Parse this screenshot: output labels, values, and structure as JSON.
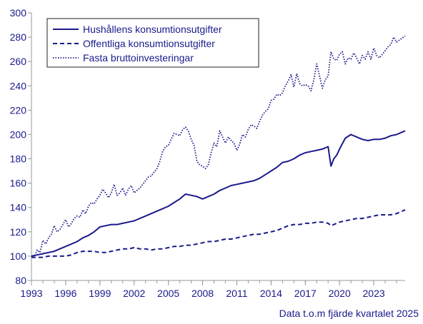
{
  "chart_data": {
    "type": "line",
    "ylim": [
      80,
      300
    ],
    "yticks": [
      80,
      100,
      120,
      140,
      160,
      180,
      200,
      220,
      240,
      260,
      280,
      300
    ],
    "xlim": [
      1993.0,
      2025.75
    ],
    "xticks": [
      1993,
      1996,
      1999,
      2002,
      2005,
      2008,
      2011,
      2014,
      2017,
      2020,
      2023
    ],
    "grid": false,
    "legend_position": "top-left",
    "note": "Data t.o.m fjärde kvartalet 2025",
    "colors": {
      "line": "#1a1a8c",
      "axis": "#999999",
      "text": "#1a1a8c"
    },
    "series": [
      {
        "name": "Hushållens konsumtionsutgifter",
        "style": "solid",
        "points": [
          [
            1993.0,
            100
          ],
          [
            1993.5,
            101
          ],
          [
            1994.0,
            102
          ],
          [
            1994.5,
            103
          ],
          [
            1995.0,
            104
          ],
          [
            1995.5,
            106
          ],
          [
            1996.0,
            108
          ],
          [
            1996.5,
            110
          ],
          [
            1997.0,
            112
          ],
          [
            1997.5,
            115
          ],
          [
            1998.0,
            117
          ],
          [
            1998.5,
            120
          ],
          [
            1999.0,
            124
          ],
          [
            1999.5,
            125
          ],
          [
            2000.0,
            126
          ],
          [
            2000.5,
            126
          ],
          [
            2001.0,
            127
          ],
          [
            2001.5,
            128
          ],
          [
            2002.0,
            129
          ],
          [
            2002.5,
            131
          ],
          [
            2003.0,
            133
          ],
          [
            2003.5,
            135
          ],
          [
            2004.0,
            137
          ],
          [
            2004.5,
            139
          ],
          [
            2005.0,
            141
          ],
          [
            2005.5,
            144
          ],
          [
            2006.0,
            147
          ],
          [
            2006.5,
            151
          ],
          [
            2007.0,
            150
          ],
          [
            2007.5,
            149
          ],
          [
            2008.0,
            147
          ],
          [
            2008.5,
            149
          ],
          [
            2009.0,
            151
          ],
          [
            2009.5,
            154
          ],
          [
            2010.0,
            156
          ],
          [
            2010.5,
            158
          ],
          [
            2011.0,
            159
          ],
          [
            2011.5,
            160
          ],
          [
            2012.0,
            161
          ],
          [
            2012.5,
            162
          ],
          [
            2013.0,
            164
          ],
          [
            2013.5,
            167
          ],
          [
            2014.0,
            170
          ],
          [
            2014.5,
            173
          ],
          [
            2015.0,
            177
          ],
          [
            2015.5,
            178
          ],
          [
            2016.0,
            180
          ],
          [
            2016.5,
            183
          ],
          [
            2017.0,
            185
          ],
          [
            2017.5,
            186
          ],
          [
            2018.0,
            187
          ],
          [
            2018.5,
            188
          ],
          [
            2019.0,
            190
          ],
          [
            2019.25,
            174
          ],
          [
            2019.5,
            180
          ],
          [
            2019.75,
            183
          ],
          [
            2020.0,
            188
          ],
          [
            2020.5,
            197
          ],
          [
            2021.0,
            200
          ],
          [
            2021.5,
            198
          ],
          [
            2022.0,
            196
          ],
          [
            2022.5,
            195
          ],
          [
            2023.0,
            196
          ],
          [
            2023.5,
            196
          ],
          [
            2024.0,
            197
          ],
          [
            2024.5,
            199
          ],
          [
            2025.0,
            200
          ],
          [
            2025.75,
            203
          ]
        ]
      },
      {
        "name": "Offentliga konsumtionsutgifter",
        "style": "dashed",
        "points": [
          [
            1993.0,
            99
          ],
          [
            1993.5,
            99
          ],
          [
            1994.0,
            99
          ],
          [
            1994.5,
            100
          ],
          [
            1995.0,
            100
          ],
          [
            1995.5,
            100
          ],
          [
            1996.0,
            100
          ],
          [
            1996.5,
            101
          ],
          [
            1997.0,
            103
          ],
          [
            1997.5,
            104
          ],
          [
            1998.0,
            104
          ],
          [
            1998.5,
            104
          ],
          [
            1999.0,
            103
          ],
          [
            1999.5,
            103
          ],
          [
            2000.0,
            104
          ],
          [
            2000.5,
            105
          ],
          [
            2001.0,
            106
          ],
          [
            2001.5,
            106
          ],
          [
            2002.0,
            107
          ],
          [
            2002.5,
            106
          ],
          [
            2003.0,
            106
          ],
          [
            2003.5,
            105
          ],
          [
            2004.0,
            106
          ],
          [
            2004.5,
            106
          ],
          [
            2005.0,
            107
          ],
          [
            2005.5,
            108
          ],
          [
            2006.0,
            108
          ],
          [
            2006.5,
            109
          ],
          [
            2007.0,
            109
          ],
          [
            2007.5,
            110
          ],
          [
            2008.0,
            111
          ],
          [
            2008.5,
            112
          ],
          [
            2009.0,
            112
          ],
          [
            2009.5,
            113
          ],
          [
            2010.0,
            114
          ],
          [
            2010.5,
            114
          ],
          [
            2011.0,
            115
          ],
          [
            2011.5,
            116
          ],
          [
            2012.0,
            117
          ],
          [
            2012.5,
            118
          ],
          [
            2013.0,
            118
          ],
          [
            2013.5,
            119
          ],
          [
            2014.0,
            120
          ],
          [
            2014.5,
            121
          ],
          [
            2015.0,
            123
          ],
          [
            2015.5,
            125
          ],
          [
            2016.0,
            126
          ],
          [
            2016.5,
            126
          ],
          [
            2017.0,
            127
          ],
          [
            2017.5,
            127
          ],
          [
            2018.0,
            128
          ],
          [
            2018.5,
            128
          ],
          [
            2019.0,
            127
          ],
          [
            2019.25,
            125
          ],
          [
            2019.5,
            126
          ],
          [
            2020.0,
            128
          ],
          [
            2020.5,
            129
          ],
          [
            2021.0,
            130
          ],
          [
            2021.5,
            131
          ],
          [
            2022.0,
            131
          ],
          [
            2022.5,
            132
          ],
          [
            2023.0,
            133
          ],
          [
            2023.5,
            134
          ],
          [
            2024.0,
            134
          ],
          [
            2024.5,
            134
          ],
          [
            2025.0,
            135
          ],
          [
            2025.75,
            138
          ]
        ]
      },
      {
        "name": "Fasta bruttoinvesteringar",
        "style": "dotted",
        "points": [
          [
            1993.0,
            100
          ],
          [
            1993.25,
            99
          ],
          [
            1993.5,
            105
          ],
          [
            1993.75,
            103
          ],
          [
            1994.0,
            113
          ],
          [
            1994.25,
            110
          ],
          [
            1994.5,
            115
          ],
          [
            1994.75,
            118
          ],
          [
            1995.0,
            125
          ],
          [
            1995.25,
            120
          ],
          [
            1995.5,
            122
          ],
          [
            1995.75,
            126
          ],
          [
            1996.0,
            130
          ],
          [
            1996.25,
            124
          ],
          [
            1996.5,
            127
          ],
          [
            1996.75,
            131
          ],
          [
            1997.0,
            133
          ],
          [
            1997.25,
            132
          ],
          [
            1997.5,
            138
          ],
          [
            1997.75,
            135
          ],
          [
            1998.0,
            141
          ],
          [
            1998.25,
            144
          ],
          [
            1998.5,
            143
          ],
          [
            1998.75,
            147
          ],
          [
            1999.0,
            150
          ],
          [
            1999.25,
            155
          ],
          [
            1999.5,
            152
          ],
          [
            1999.75,
            148
          ],
          [
            2000.0,
            152
          ],
          [
            2000.25,
            159
          ],
          [
            2000.5,
            150
          ],
          [
            2000.75,
            152
          ],
          [
            2001.0,
            156
          ],
          [
            2001.25,
            150
          ],
          [
            2001.5,
            155
          ],
          [
            2001.75,
            158
          ],
          [
            2002.0,
            152
          ],
          [
            2002.25,
            154
          ],
          [
            2002.5,
            156
          ],
          [
            2002.75,
            159
          ],
          [
            2003.0,
            162
          ],
          [
            2003.25,
            165
          ],
          [
            2003.5,
            166
          ],
          [
            2003.75,
            169
          ],
          [
            2004.0,
            172
          ],
          [
            2004.25,
            178
          ],
          [
            2004.5,
            186
          ],
          [
            2004.75,
            190
          ],
          [
            2005.0,
            191
          ],
          [
            2005.25,
            196
          ],
          [
            2005.5,
            201
          ],
          [
            2005.75,
            200
          ],
          [
            2006.0,
            199
          ],
          [
            2006.25,
            204
          ],
          [
            2006.5,
            206
          ],
          [
            2006.75,
            203
          ],
          [
            2007.0,
            196
          ],
          [
            2007.25,
            191
          ],
          [
            2007.5,
            178
          ],
          [
            2007.75,
            175
          ],
          [
            2008.0,
            174
          ],
          [
            2008.25,
            172
          ],
          [
            2008.5,
            175
          ],
          [
            2008.75,
            185
          ],
          [
            2009.0,
            193
          ],
          [
            2009.25,
            190
          ],
          [
            2009.5,
            203
          ],
          [
            2009.75,
            198
          ],
          [
            2010.0,
            193
          ],
          [
            2010.25,
            198
          ],
          [
            2010.5,
            195
          ],
          [
            2010.75,
            193
          ],
          [
            2011.0,
            187
          ],
          [
            2011.25,
            192
          ],
          [
            2011.5,
            200
          ],
          [
            2011.75,
            198
          ],
          [
            2012.0,
            204
          ],
          [
            2012.25,
            208
          ],
          [
            2012.5,
            207
          ],
          [
            2012.75,
            205
          ],
          [
            2013.0,
            211
          ],
          [
            2013.25,
            216
          ],
          [
            2013.5,
            219
          ],
          [
            2013.75,
            221
          ],
          [
            2014.0,
            228
          ],
          [
            2014.25,
            229
          ],
          [
            2014.5,
            233
          ],
          [
            2014.75,
            232
          ],
          [
            2015.0,
            234
          ],
          [
            2015.25,
            240
          ],
          [
            2015.5,
            244
          ],
          [
            2015.75,
            249
          ],
          [
            2016.0,
            239
          ],
          [
            2016.25,
            250
          ],
          [
            2016.5,
            242
          ],
          [
            2016.75,
            240
          ],
          [
            2017.0,
            241
          ],
          [
            2017.25,
            240
          ],
          [
            2017.5,
            236
          ],
          [
            2017.75,
            245
          ],
          [
            2018.0,
            258
          ],
          [
            2018.25,
            248
          ],
          [
            2018.5,
            238
          ],
          [
            2018.75,
            245
          ],
          [
            2019.0,
            248
          ],
          [
            2019.25,
            268
          ],
          [
            2019.5,
            262
          ],
          [
            2019.75,
            261
          ],
          [
            2020.0,
            266
          ],
          [
            2020.25,
            268
          ],
          [
            2020.5,
            258
          ],
          [
            2020.75,
            263
          ],
          [
            2021.0,
            262
          ],
          [
            2021.25,
            267
          ],
          [
            2021.5,
            263
          ],
          [
            2021.75,
            258
          ],
          [
            2022.0,
            265
          ],
          [
            2022.25,
            262
          ],
          [
            2022.5,
            268
          ],
          [
            2022.75,
            262
          ],
          [
            2023.0,
            271
          ],
          [
            2023.25,
            265
          ],
          [
            2023.5,
            263
          ],
          [
            2023.75,
            266
          ],
          [
            2024.0,
            269
          ],
          [
            2024.25,
            272
          ],
          [
            2024.5,
            274
          ],
          [
            2024.75,
            280
          ],
          [
            2025.0,
            276
          ],
          [
            2025.75,
            281
          ]
        ]
      }
    ]
  }
}
